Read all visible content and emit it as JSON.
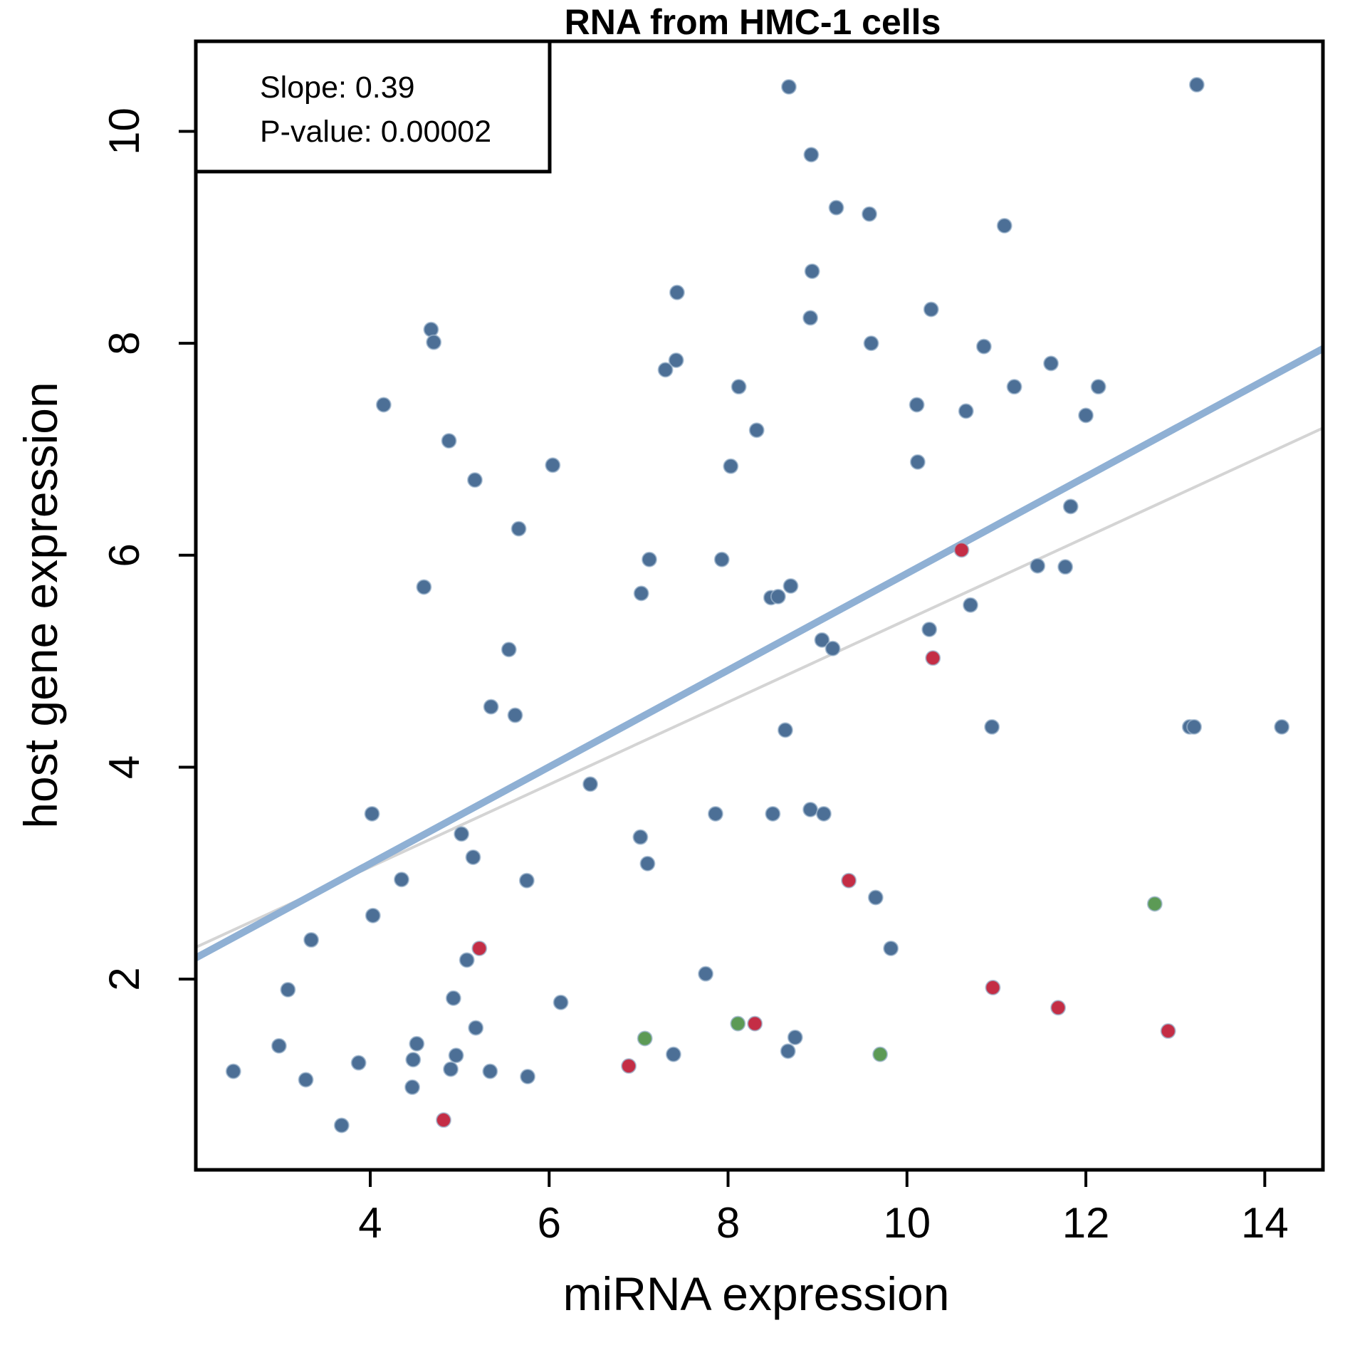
{
  "chart_data": {
    "type": "scatter",
    "title": "RNA from HMC-1 cells",
    "xlabel": "miRNA expression",
    "ylabel": "host gene expression",
    "xlim": [
      2.05,
      14.65
    ],
    "ylim": [
      0.2,
      10.85
    ],
    "xticks": [
      4,
      6,
      8,
      10,
      12,
      14
    ],
    "yticks": [
      2,
      4,
      6,
      8,
      10
    ],
    "legend": {
      "position": "top-left",
      "lines": [
        "Slope: 0.39",
        "P-value: 0.00002"
      ]
    },
    "colors": {
      "blue": "#4c6f96",
      "red": "#c42d45",
      "green": "#5c9a55",
      "fit_line": "#8fb0d4",
      "reference_line": "#d4d4d4"
    },
    "fit_line": {
      "x": [
        2.05,
        14.65
      ],
      "y": [
        2.2,
        7.95
      ]
    },
    "reference_line": {
      "x": [
        2.05,
        14.65
      ],
      "y": [
        2.3,
        7.2
      ]
    },
    "series": [
      {
        "color": "blue",
        "points": [
          [
            8.68,
            10.42
          ],
          [
            13.24,
            10.44
          ],
          [
            8.93,
            9.78
          ],
          [
            9.21,
            9.28
          ],
          [
            9.58,
            9.22
          ],
          [
            11.09,
            9.11
          ],
          [
            8.94,
            8.68
          ],
          [
            7.43,
            8.48
          ],
          [
            10.27,
            8.32
          ],
          [
            8.92,
            8.24
          ],
          [
            4.68,
            8.13
          ],
          [
            4.71,
            8.01
          ],
          [
            9.6,
            8.0
          ],
          [
            10.86,
            7.97
          ],
          [
            11.61,
            7.81
          ],
          [
            7.42,
            7.84
          ],
          [
            7.3,
            7.75
          ],
          [
            8.12,
            7.59
          ],
          [
            11.2,
            7.59
          ],
          [
            12.14,
            7.59
          ],
          [
            4.15,
            7.42
          ],
          [
            10.11,
            7.42
          ],
          [
            10.66,
            7.36
          ],
          [
            12.0,
            7.32
          ],
          [
            8.32,
            7.18
          ],
          [
            4.88,
            7.08
          ],
          [
            6.04,
            6.85
          ],
          [
            8.03,
            6.84
          ],
          [
            10.12,
            6.88
          ],
          [
            5.17,
            6.71
          ],
          [
            5.66,
            6.25
          ],
          [
            11.83,
            6.46
          ],
          [
            7.12,
            5.96
          ],
          [
            7.93,
            5.96
          ],
          [
            11.46,
            5.9
          ],
          [
            11.77,
            5.89
          ],
          [
            4.6,
            5.7
          ],
          [
            8.7,
            5.71
          ],
          [
            7.03,
            5.64
          ],
          [
            8.48,
            5.6
          ],
          [
            8.56,
            5.61
          ],
          [
            10.71,
            5.53
          ],
          [
            10.25,
            5.3
          ],
          [
            9.05,
            5.2
          ],
          [
            9.17,
            5.12
          ],
          [
            5.55,
            5.11
          ],
          [
            5.35,
            4.57
          ],
          [
            5.62,
            4.49
          ],
          [
            8.64,
            4.35
          ],
          [
            10.95,
            4.38
          ],
          [
            13.16,
            4.38
          ],
          [
            13.21,
            4.38
          ],
          [
            14.19,
            4.38
          ],
          [
            6.46,
            3.84
          ],
          [
            4.02,
            3.56
          ],
          [
            7.86,
            3.56
          ],
          [
            8.5,
            3.56
          ],
          [
            8.92,
            3.6
          ],
          [
            9.07,
            3.56
          ],
          [
            5.02,
            3.37
          ],
          [
            7.02,
            3.34
          ],
          [
            5.15,
            3.15
          ],
          [
            7.1,
            3.09
          ],
          [
            4.35,
            2.94
          ],
          [
            5.75,
            2.93
          ],
          [
            9.65,
            2.77
          ],
          [
            4.03,
            2.6
          ],
          [
            3.34,
            2.37
          ],
          [
            9.82,
            2.29
          ],
          [
            5.08,
            2.18
          ],
          [
            7.75,
            2.05
          ],
          [
            3.08,
            1.9
          ],
          [
            4.93,
            1.82
          ],
          [
            6.13,
            1.78
          ],
          [
            5.18,
            1.54
          ],
          [
            8.75,
            1.45
          ],
          [
            4.52,
            1.39
          ],
          [
            2.98,
            1.37
          ],
          [
            8.67,
            1.32
          ],
          [
            7.39,
            1.29
          ],
          [
            4.96,
            1.28
          ],
          [
            4.48,
            1.24
          ],
          [
            3.87,
            1.21
          ],
          [
            4.9,
            1.15
          ],
          [
            5.34,
            1.13
          ],
          [
            2.47,
            1.13
          ],
          [
            5.76,
            1.08
          ],
          [
            3.28,
            1.05
          ],
          [
            4.47,
            0.98
          ],
          [
            3.68,
            0.62
          ]
        ]
      },
      {
        "color": "red",
        "points": [
          [
            10.61,
            6.05
          ],
          [
            10.29,
            5.03
          ],
          [
            9.35,
            2.93
          ],
          [
            5.22,
            2.29
          ],
          [
            10.96,
            1.92
          ],
          [
            11.69,
            1.73
          ],
          [
            8.3,
            1.58
          ],
          [
            12.92,
            1.51
          ],
          [
            6.89,
            1.18
          ],
          [
            4.82,
            0.67
          ]
        ]
      },
      {
        "color": "green",
        "points": [
          [
            12.77,
            2.71
          ],
          [
            8.11,
            1.58
          ],
          [
            7.07,
            1.44
          ],
          [
            9.7,
            1.29
          ]
        ]
      }
    ]
  }
}
